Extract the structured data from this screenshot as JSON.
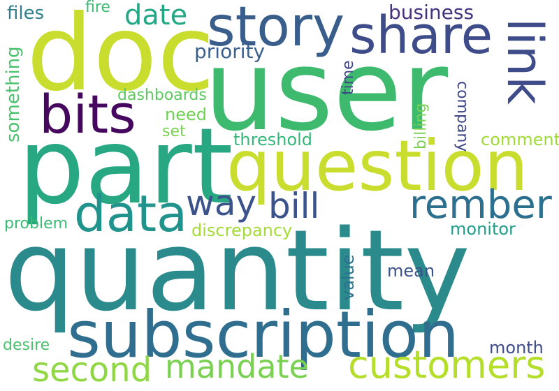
{
  "words": {
    "quantity": "quantity",
    "user": "user",
    "doc": "doc",
    "part": "part",
    "question": "question",
    "subscription": "subscription",
    "story": "story",
    "share": "share",
    "bits": "bits",
    "link": "link",
    "data": "data",
    "rember": "rember",
    "customers": "customers",
    "mandate": "mandate",
    "second": "second",
    "bill": "bill",
    "way": "way",
    "date": "date",
    "files": "files",
    "fire": "fire",
    "business": "business",
    "priority": "priority",
    "something": "something",
    "time": "time",
    "dashboards": "dashboards",
    "need": "need",
    "set": "set",
    "billing": "billing",
    "company": "company",
    "comment": "comment",
    "threshold": "threshold",
    "problem": "problem",
    "discrepancy": "discrepancy",
    "monitor": "monitor",
    "value": "value",
    "mean": "mean",
    "desire": "desire",
    "month": "month"
  },
  "colors": {
    "quantity": "#2a8a8c",
    "user": "#3dba6e",
    "doc": "#c8dd2e",
    "part": "#27a882",
    "question": "#c8dd2e",
    "subscription": "#2f6e8e",
    "story": "#3a5e8c",
    "share": "#3e4c8a",
    "bits": "#45085e",
    "link": "#3e4c8a",
    "data": "#20948c",
    "rember": "#2d6f8e",
    "customers": "#b5de2b",
    "mandate": "#7ad151",
    "second": "#8fd744",
    "bill": "#3b528b",
    "way": "#3b528b",
    "date": "#22a884",
    "files": "#2f7f8e",
    "fire": "#3dbc74",
    "business": "#46327e",
    "priority": "#3b5f8c",
    "something": "#4ac16d",
    "time": "#404788",
    "dashboards": "#5ec962",
    "need": "#70cf57",
    "set": "#7ad151",
    "billing": "#7ad151",
    "company": "#404788",
    "comment": "#a0da39",
    "threshold": "#35b779",
    "problem": "#3bbb75",
    "discrepancy": "#a5db36",
    "monitor": "#1f9e89",
    "value": "#2c718e",
    "mean": "#3b528b",
    "desire": "#4ac16d",
    "month": "#3e4c8a"
  }
}
